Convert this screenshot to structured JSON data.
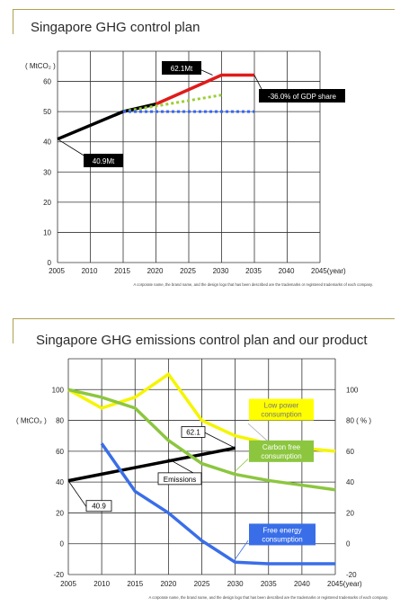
{
  "chart_data": [
    {
      "type": "line",
      "title": "Singapore GHG control plan",
      "unit": "( MtCO₂ )",
      "x_ticks": [
        "2005",
        "2010",
        "2015",
        "2020",
        "2025",
        "2030",
        "2035",
        "2040",
        "2045(year)"
      ],
      "y_ticks": [
        "0",
        "10",
        "20",
        "30",
        "40",
        "50",
        "60"
      ],
      "xlim": [
        2005,
        2045
      ],
      "ylim": [
        0,
        70
      ],
      "grid": true,
      "series": [
        {
          "style": "solid",
          "color": "#000000",
          "x": [
            2005,
            2015,
            2020
          ],
          "y": [
            40.9,
            50.0,
            52.5
          ]
        },
        {
          "style": "solid",
          "color": "#e01b1b",
          "x": [
            2020,
            2030,
            2035
          ],
          "y": [
            52.5,
            62.1,
            62.1
          ]
        },
        {
          "style": "dotted",
          "color": "#9acd32",
          "x": [
            2015,
            2030
          ],
          "y": [
            50.0,
            55.5
          ]
        },
        {
          "style": "dotted",
          "color": "#3366ff",
          "x": [
            2015,
            2035
          ],
          "y": [
            50.0,
            50.0
          ]
        }
      ],
      "annotations": [
        {
          "text": "62.1Mt",
          "x": 2030,
          "y": 62.1
        },
        {
          "text": "-36.0% of GDP share",
          "x": 2035,
          "y": 62.1
        },
        {
          "text": "40.9Mt",
          "x": 2005,
          "y": 40.9
        }
      ],
      "footnote": "A corporate name, the brand name, and the design logo that has been described are the trademarks or registered trademarks of each company."
    },
    {
      "type": "line",
      "title": "Singapore GHG emissions control plan and our product",
      "left_unit": "( MtCO₂ )",
      "right_unit": "80 ( % )",
      "x_ticks": [
        "2005",
        "2010",
        "2015",
        "2020",
        "2025",
        "2030",
        "2035",
        "2040",
        "2045(year)"
      ],
      "y_ticks": [
        "-20",
        "0",
        "20",
        "40",
        "60",
        "80",
        "100"
      ],
      "right_ticks": [
        "-20",
        "0",
        "20",
        "40",
        "60",
        "100"
      ],
      "xlim": [
        2005,
        2045
      ],
      "ylim": [
        -20,
        120
      ],
      "grid": true,
      "series": [
        {
          "name": "Emissions",
          "color": "#000000",
          "x": [
            2005,
            2030
          ],
          "y": [
            40.9,
            62.1
          ]
        },
        {
          "name": "Low power consumption",
          "color": "#f5f500",
          "x": [
            2005,
            2010,
            2015,
            2020,
            2025,
            2030,
            2035,
            2040,
            2045
          ],
          "y": [
            100,
            88,
            95,
            110,
            80,
            70,
            65,
            62,
            60
          ]
        },
        {
          "name": "Carbon free consumption",
          "color": "#8cc63f",
          "x": [
            2005,
            2010,
            2015,
            2020,
            2025,
            2030,
            2035,
            2040,
            2045
          ],
          "y": [
            100,
            95,
            88,
            67,
            52,
            45,
            41,
            38,
            35
          ]
        },
        {
          "name": "Free energy consumption",
          "color": "#3a6ee8",
          "x": [
            2010,
            2015,
            2020,
            2025,
            2030,
            2035,
            2040,
            2045
          ],
          "y": [
            65,
            34,
            20,
            2,
            -12,
            -13,
            -13,
            -13
          ]
        }
      ],
      "annotations": [
        {
          "text": "62.1",
          "x": 2030,
          "y": 62.1
        },
        {
          "text": "40.9",
          "x": 2005,
          "y": 40.9
        }
      ],
      "footnote": "A corporate name, the brand name, and the design logo that has been described are the trademarks or registered trademarks of each company."
    }
  ]
}
